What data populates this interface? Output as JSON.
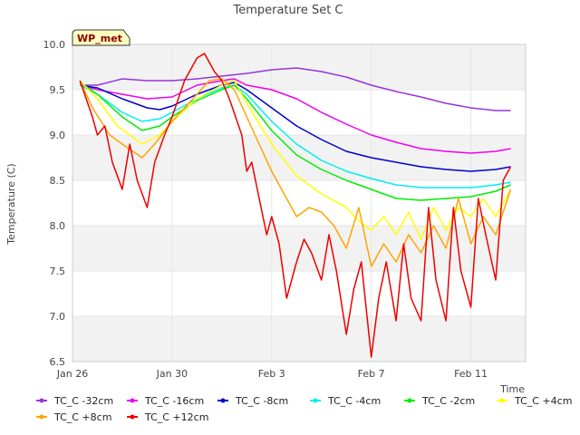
{
  "chart_data": {
    "type": "line",
    "title": "Temperature Set C",
    "xlabel": "Time",
    "ylabel": "Temperature (C)",
    "badge": "WP_met",
    "x_ticks": [
      {
        "label": "Jan 26",
        "day": 0
      },
      {
        "label": "Jan 30",
        "day": 4
      },
      {
        "label": "Feb 3",
        "day": 8
      },
      {
        "label": "Feb 7",
        "day": 12
      },
      {
        "label": "Feb 11",
        "day": 16
      }
    ],
    "xlim_days": [
      0,
      18.2
    ],
    "ylim": [
      6.5,
      10.0
    ],
    "y_ticks": [
      6.5,
      7.0,
      7.5,
      8.0,
      8.5,
      9.0,
      9.5,
      10.0
    ],
    "grid": "bands",
    "legend_position": "bottom",
    "series": [
      {
        "name": "TC_C -32cm",
        "color": "#9933dd",
        "x": [
          0.3,
          1.0,
          2.0,
          3.0,
          4.0,
          5.0,
          6.0,
          7.0,
          8.0,
          9.0,
          10.0,
          11.0,
          12.0,
          13.0,
          14.0,
          15.0,
          16.0,
          17.0,
          17.6
        ],
        "y": [
          9.55,
          9.55,
          9.62,
          9.6,
          9.6,
          9.62,
          9.65,
          9.68,
          9.72,
          9.74,
          9.7,
          9.64,
          9.55,
          9.48,
          9.42,
          9.35,
          9.3,
          9.27,
          9.27
        ]
      },
      {
        "name": "TC_C -16cm",
        "color": "#ee00ee",
        "x": [
          0.3,
          1.0,
          2.0,
          3.0,
          4.0,
          5.0,
          6.0,
          6.5,
          7.0,
          8.0,
          9.0,
          10.0,
          11.0,
          12.0,
          13.0,
          14.0,
          15.0,
          16.0,
          17.0,
          17.6
        ],
        "y": [
          9.55,
          9.5,
          9.45,
          9.4,
          9.42,
          9.55,
          9.6,
          9.62,
          9.55,
          9.5,
          9.4,
          9.25,
          9.12,
          9.0,
          8.92,
          8.85,
          8.82,
          8.8,
          8.82,
          8.85
        ]
      },
      {
        "name": "TC_C -8cm",
        "color": "#0000cc",
        "x": [
          0.3,
          1.0,
          2.0,
          3.0,
          3.5,
          4.0,
          5.0,
          6.0,
          6.5,
          7.0,
          8.0,
          9.0,
          10.0,
          11.0,
          12.0,
          13.0,
          14.0,
          15.0,
          16.0,
          17.0,
          17.6
        ],
        "y": [
          9.55,
          9.52,
          9.4,
          9.3,
          9.28,
          9.32,
          9.45,
          9.55,
          9.58,
          9.5,
          9.3,
          9.1,
          8.95,
          8.82,
          8.75,
          8.7,
          8.65,
          8.62,
          8.6,
          8.62,
          8.65
        ]
      },
      {
        "name": "TC_C -4cm",
        "color": "#00eeee",
        "x": [
          0.3,
          1.0,
          2.0,
          2.8,
          3.5,
          4.0,
          5.0,
          6.0,
          6.5,
          7.0,
          8.0,
          9.0,
          10.0,
          11.0,
          12.0,
          13.0,
          14.0,
          15.0,
          16.0,
          17.0,
          17.6
        ],
        "y": [
          9.55,
          9.45,
          9.25,
          9.15,
          9.18,
          9.25,
          9.4,
          9.52,
          9.55,
          9.45,
          9.15,
          8.9,
          8.72,
          8.6,
          8.52,
          8.45,
          8.42,
          8.42,
          8.42,
          8.45,
          8.48
        ]
      },
      {
        "name": "TC_C -2cm",
        "color": "#00ee00",
        "x": [
          0.3,
          1.0,
          2.0,
          2.8,
          3.5,
          4.0,
          5.0,
          6.0,
          6.5,
          7.0,
          8.0,
          9.0,
          10.0,
          11.0,
          12.0,
          13.0,
          14.0,
          15.0,
          16.0,
          17.0,
          17.6
        ],
        "y": [
          9.58,
          9.45,
          9.2,
          9.05,
          9.1,
          9.2,
          9.38,
          9.5,
          9.55,
          9.4,
          9.05,
          8.78,
          8.62,
          8.5,
          8.4,
          8.3,
          8.28,
          8.3,
          8.32,
          8.38,
          8.45
        ]
      },
      {
        "name": "TC_C +4cm",
        "color": "#ffff00",
        "x": [
          0.3,
          1.0,
          1.8,
          2.8,
          3.5,
          4.2,
          5.0,
          6.0,
          6.5,
          7.0,
          8.0,
          9.0,
          10.0,
          11.0,
          11.5,
          12.0,
          12.5,
          13.0,
          13.5,
          14.0,
          14.5,
          15.0,
          15.5,
          16.0,
          16.5,
          17.0,
          17.6
        ],
        "y": [
          9.6,
          9.4,
          9.1,
          8.9,
          9.0,
          9.2,
          9.4,
          9.55,
          9.6,
          9.35,
          8.9,
          8.55,
          8.35,
          8.2,
          8.05,
          7.95,
          8.1,
          7.9,
          8.15,
          7.85,
          8.2,
          7.95,
          8.2,
          8.1,
          8.3,
          8.1,
          8.4
        ]
      },
      {
        "name": "TC_C +8cm",
        "color": "#ffa500",
        "x": [
          0.3,
          0.8,
          1.5,
          2.0,
          2.8,
          3.3,
          4.0,
          5.0,
          5.5,
          6.0,
          6.5,
          7.0,
          7.5,
          8.0,
          8.5,
          9.0,
          9.5,
          10.0,
          10.5,
          11.0,
          11.5,
          12.0,
          12.5,
          13.0,
          13.5,
          14.0,
          14.5,
          15.0,
          15.5,
          16.0,
          16.5,
          17.0,
          17.6
        ],
        "y": [
          9.6,
          9.3,
          9.0,
          8.9,
          8.75,
          8.9,
          9.15,
          9.45,
          9.6,
          9.62,
          9.5,
          9.2,
          8.9,
          8.6,
          8.35,
          8.1,
          8.2,
          8.15,
          8.0,
          7.75,
          8.2,
          7.55,
          7.8,
          7.6,
          7.9,
          7.7,
          8.0,
          7.75,
          8.3,
          7.8,
          8.1,
          7.9,
          8.4
        ]
      },
      {
        "name": "TC_C +12cm",
        "color": "#ee0000",
        "x": [
          0.3,
          0.8,
          1.0,
          1.3,
          1.6,
          2.0,
          2.3,
          2.6,
          3.0,
          3.3,
          3.7,
          4.0,
          4.5,
          5.0,
          5.3,
          5.7,
          6.0,
          6.3,
          6.8,
          7.0,
          7.2,
          7.5,
          7.8,
          8.0,
          8.3,
          8.6,
          9.0,
          9.3,
          9.6,
          10.0,
          10.3,
          10.6,
          11.0,
          11.3,
          11.6,
          12.0,
          12.3,
          12.6,
          13.0,
          13.3,
          13.6,
          14.0,
          14.3,
          14.6,
          15.0,
          15.3,
          15.6,
          16.0,
          16.3,
          16.6,
          17.0,
          17.3,
          17.6
        ],
        "y": [
          9.6,
          9.2,
          9.0,
          9.1,
          8.7,
          8.4,
          8.9,
          8.5,
          8.2,
          8.7,
          9.0,
          9.2,
          9.6,
          9.85,
          9.9,
          9.7,
          9.6,
          9.4,
          9.0,
          8.6,
          8.7,
          8.3,
          7.9,
          8.1,
          7.8,
          7.2,
          7.6,
          7.85,
          7.7,
          7.4,
          7.9,
          7.5,
          6.8,
          7.3,
          7.6,
          6.55,
          7.2,
          7.6,
          6.95,
          7.8,
          7.2,
          6.95,
          8.2,
          7.4,
          6.95,
          8.2,
          7.5,
          7.1,
          8.3,
          7.9,
          7.4,
          8.5,
          8.65
        ]
      }
    ]
  }
}
